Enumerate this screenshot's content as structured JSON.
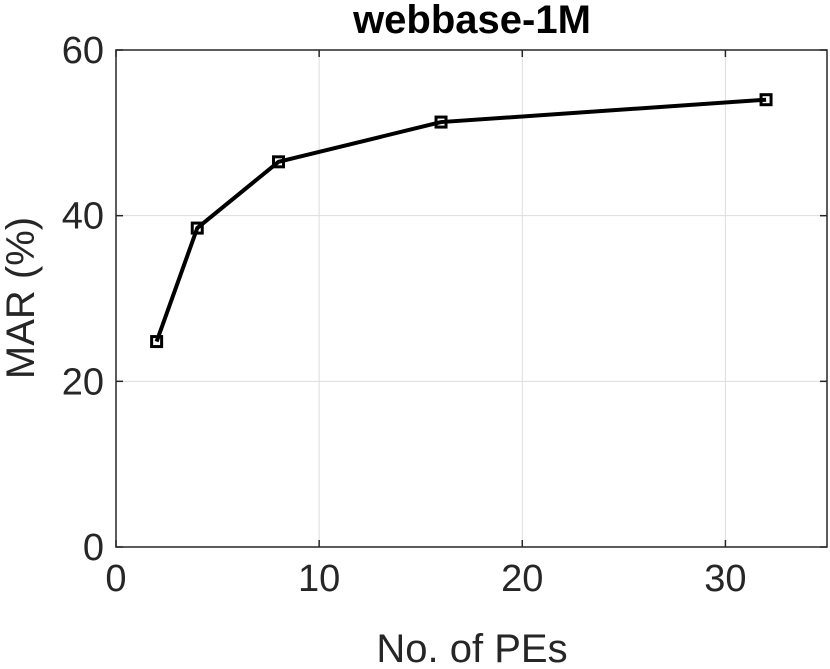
{
  "chart_data": {
    "type": "line",
    "title": "webbase-1M",
    "xlabel": "No. of PEs",
    "ylabel": "MAR (%)",
    "xlim": [
      0,
      35
    ],
    "ylim": [
      0,
      60
    ],
    "xticks": [
      0,
      10,
      20,
      30
    ],
    "yticks": [
      0,
      20,
      40,
      60
    ],
    "xtick_labels": [
      "0",
      "10",
      "20",
      "30"
    ],
    "ytick_labels": [
      "0",
      "20",
      "40",
      "60"
    ],
    "grid": true,
    "box": true,
    "series": [
      {
        "x": [
          2,
          4,
          8,
          16,
          32
        ],
        "y": [
          24.8,
          38.5,
          46.5,
          51.3,
          54.0
        ],
        "color": "#000000",
        "marker": "square"
      }
    ]
  }
}
